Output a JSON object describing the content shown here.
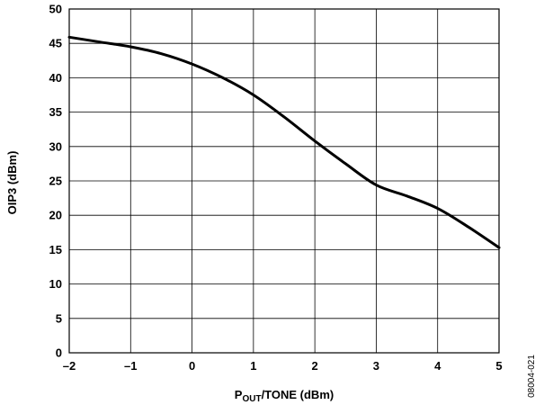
{
  "chart_data": {
    "type": "line",
    "xlabel_main": "P",
    "xlabel_sub": "OUT",
    "xlabel_rest": "/TONE (dBm)",
    "ylabel": "OIP3 (dBm)",
    "xlim": [
      -2,
      5
    ],
    "ylim": [
      0,
      50
    ],
    "x_ticks": [
      -2,
      -1,
      0,
      1,
      2,
      3,
      4,
      5
    ],
    "x_tick_labels": [
      "–2",
      "–1",
      "0",
      "1",
      "2",
      "3",
      "4",
      "5"
    ],
    "y_ticks": [
      0,
      5,
      10,
      15,
      20,
      25,
      30,
      35,
      40,
      45,
      50
    ],
    "y_tick_labels": [
      "0",
      "5",
      "10",
      "15",
      "20",
      "25",
      "30",
      "35",
      "40",
      "45",
      "50"
    ],
    "grid": true,
    "series": [
      {
        "x": [
          -2,
          -1.5,
          -1,
          -0.5,
          0,
          0.5,
          1,
          1.5,
          2,
          2.5,
          3,
          3.5,
          4,
          4.5,
          5
        ],
        "y": [
          45.9,
          45.2,
          44.5,
          43.5,
          42.0,
          40.0,
          37.5,
          34.3,
          30.8,
          27.5,
          24.4,
          22.8,
          21.0,
          18.3,
          15.3
        ]
      }
    ],
    "color": "#000000",
    "figure_code": "08004-021"
  }
}
